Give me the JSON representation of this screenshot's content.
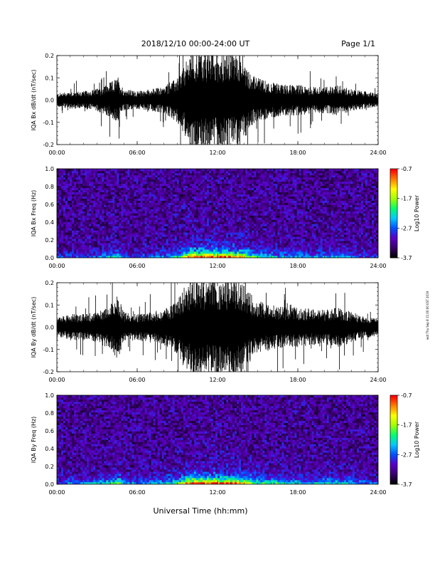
{
  "header": {
    "date_range": "2018/12/10   00:00-24:00 UT",
    "page": "Page 1/1"
  },
  "xaxis": {
    "label": "Universal Time (hh:mm)",
    "tick_labels": [
      "00:00",
      "06:00",
      "12:00",
      "18:00",
      "24:00"
    ]
  },
  "side_stamp": "wdt Thu Sep 8 11:00:00 EST 2019",
  "colors": {
    "waveform": "#000000",
    "colormap": [
      "#000000",
      "#3a0070",
      "#5a00c8",
      "#0050ff",
      "#00c8ff",
      "#00ff70",
      "#a0ff00",
      "#ffff00",
      "#ff8000",
      "#ff0000"
    ]
  },
  "chart_data": [
    {
      "type": "line",
      "ylabel": "IQA Bx dB/dt (nT/sec)",
      "xlim": [
        0,
        24
      ],
      "ylim": [
        -0.2,
        0.2
      ],
      "ytick_labels": [
        "-0.2",
        "-0.1",
        "0.0",
        "0.1",
        "0.2"
      ],
      "envelope": {
        "x_hours": [
          0,
          1,
          2,
          3,
          4,
          4.5,
          5,
          6,
          7,
          8,
          9,
          9.5,
          10,
          11,
          12,
          13,
          13.8,
          14.5,
          15,
          16,
          17,
          18,
          19,
          20,
          21,
          22,
          23,
          24
        ],
        "amplitude": [
          0.03,
          0.04,
          0.04,
          0.05,
          0.08,
          0.1,
          0.05,
          0.04,
          0.05,
          0.06,
          0.1,
          0.15,
          0.22,
          0.22,
          0.22,
          0.22,
          0.2,
          0.12,
          0.1,
          0.08,
          0.07,
          0.07,
          0.06,
          0.06,
          0.07,
          0.05,
          0.04,
          0.03
        ]
      }
    },
    {
      "type": "heatmap",
      "ylabel": "IQA Bx Freq (Hz)",
      "xlim": [
        0,
        24
      ],
      "ylim": [
        0,
        1.0
      ],
      "ytick_labels": [
        "0.0",
        "0.2",
        "0.4",
        "0.6",
        "0.8",
        "1.0"
      ],
      "colorbar": {
        "label": "Log10 Power",
        "range": [
          -3.7,
          -0.7
        ],
        "tick_labels": [
          "-0.7",
          "-1.7",
          "-2.7",
          "-3.7"
        ]
      }
    },
    {
      "type": "line",
      "ylabel": "IQA By dB/dt (nT/sec)",
      "xlim": [
        0,
        24
      ],
      "ylim": [
        -0.2,
        0.2
      ],
      "ytick_labels": [
        "-0.2",
        "-0.1",
        "0.0",
        "0.1",
        "0.2"
      ],
      "envelope": {
        "x_hours": [
          0,
          1,
          2,
          3,
          4,
          4.5,
          5,
          6,
          7,
          8,
          9,
          9.5,
          10,
          11,
          12,
          13,
          13.8,
          14.5,
          15,
          16,
          17,
          18,
          19,
          20,
          21,
          22,
          23,
          24
        ],
        "amplitude": [
          0.04,
          0.06,
          0.06,
          0.07,
          0.1,
          0.15,
          0.07,
          0.06,
          0.07,
          0.08,
          0.12,
          0.18,
          0.22,
          0.22,
          0.22,
          0.22,
          0.2,
          0.15,
          0.12,
          0.1,
          0.09,
          0.09,
          0.08,
          0.08,
          0.09,
          0.07,
          0.05,
          0.04
        ]
      }
    },
    {
      "type": "heatmap",
      "ylabel": "IQA By Freq (Hz)",
      "xlim": [
        0,
        24
      ],
      "ylim": [
        0,
        1.0
      ],
      "ytick_labels": [
        "0.0",
        "0.2",
        "0.4",
        "0.6",
        "0.8",
        "1.0"
      ],
      "colorbar": {
        "label": "Log10 Power",
        "range": [
          -3.7,
          -0.7
        ],
        "tick_labels": [
          "-0.7",
          "-1.7",
          "-2.7",
          "-3.7"
        ]
      }
    }
  ]
}
